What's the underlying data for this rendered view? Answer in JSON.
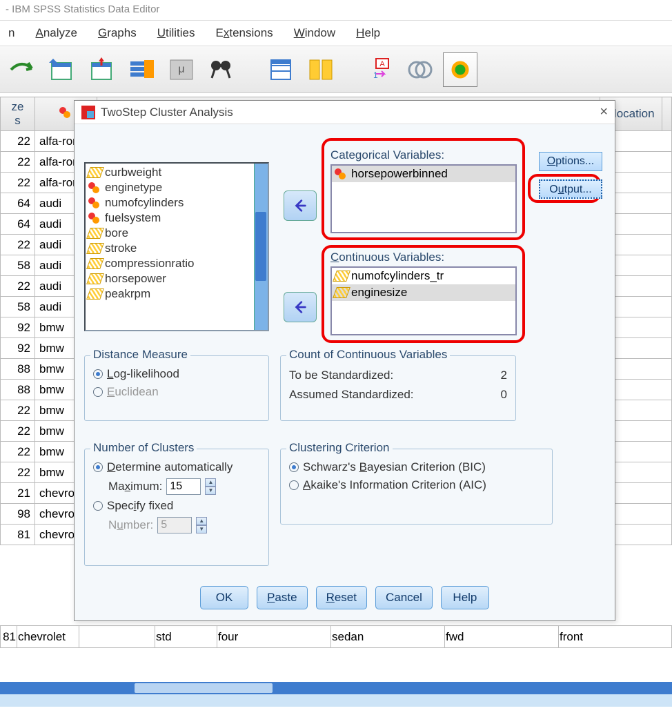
{
  "window_title": "- IBM SPSS Statistics Data Editor",
  "menu": [
    "Analyze",
    "Graphs",
    "Utilities",
    "Extensions",
    "Window",
    "Help"
  ],
  "menu_accel": [
    0,
    0,
    0,
    1,
    0,
    0
  ],
  "dialog": {
    "title": "TwoStep Cluster Analysis",
    "source_vars": [
      {
        "name": "curbweight",
        "type": "scale",
        "sel": true
      },
      {
        "name": "enginetype",
        "type": "nom"
      },
      {
        "name": "numofcylinders",
        "type": "nom"
      },
      {
        "name": "fuelsystem",
        "type": "nom"
      },
      {
        "name": "bore",
        "type": "scale"
      },
      {
        "name": "stroke",
        "type": "scale"
      },
      {
        "name": "compressionratio",
        "type": "scale"
      },
      {
        "name": "horsepower",
        "type": "scale"
      },
      {
        "name": "peakrpm",
        "type": "scale"
      }
    ],
    "cat_label": "Categorical Variables:",
    "cat_vars": [
      {
        "name": "horsepowerbinned",
        "type": "nom",
        "sel": true
      }
    ],
    "cont_label": "Continuous Variables:",
    "cont_vars": [
      {
        "name": "numofcylinders_tr",
        "type": "scale"
      },
      {
        "name": "enginesize",
        "type": "scale",
        "sel": true
      }
    ],
    "options_btn": "Options...",
    "output_btn": "Output...",
    "distance": {
      "title": "Distance Measure",
      "opt1": "Log-likelihood",
      "opt2": "Euclidean"
    },
    "count": {
      "title": "Count of Continuous Variables",
      "row1": "To be Standardized:",
      "val1": "2",
      "row2": "Assumed Standardized:",
      "val2": "0"
    },
    "clusters": {
      "title": "Number of Clusters",
      "opt1": "Determine automatically",
      "max_label": "Maximum:",
      "max_val": "15",
      "opt2": "Specify fixed",
      "num_label": "Number:",
      "num_val": "5"
    },
    "criterion": {
      "title": "Clustering Criterion",
      "opt1": "Schwarz's Bayesian Criterion (BIC)",
      "opt2": "Akaike's Information Criterion (AIC)"
    },
    "buttons": [
      "OK",
      "Paste",
      "Reset",
      "Cancel",
      "Help"
    ]
  },
  "grid": {
    "header_partial": [
      "ze",
      "s"
    ],
    "header_right": "elocation",
    "rows": [
      [
        "22",
        "alfa-rome"
      ],
      [
        "22",
        "alfa-rome"
      ],
      [
        "22",
        "alfa-rome"
      ],
      [
        "64",
        "audi"
      ],
      [
        "64",
        "audi"
      ],
      [
        "22",
        "audi"
      ],
      [
        "58",
        "audi"
      ],
      [
        "22",
        "audi"
      ],
      [
        "58",
        "audi"
      ],
      [
        "92",
        "bmw"
      ],
      [
        "92",
        "bmw"
      ],
      [
        "88",
        "bmw"
      ],
      [
        "88",
        "bmw"
      ],
      [
        "22",
        "bmw"
      ],
      [
        "22",
        "bmw"
      ],
      [
        "22",
        "bmw"
      ],
      [
        "22",
        "bmw"
      ],
      [
        "21",
        "chevrolet"
      ],
      [
        "98",
        "chevrolet"
      ],
      [
        "81",
        "chevrolet"
      ]
    ],
    "bottom_row": [
      "",
      "std",
      "four",
      "",
      "sedan",
      "fwd",
      "",
      "front"
    ]
  },
  "var_header_icon": true
}
